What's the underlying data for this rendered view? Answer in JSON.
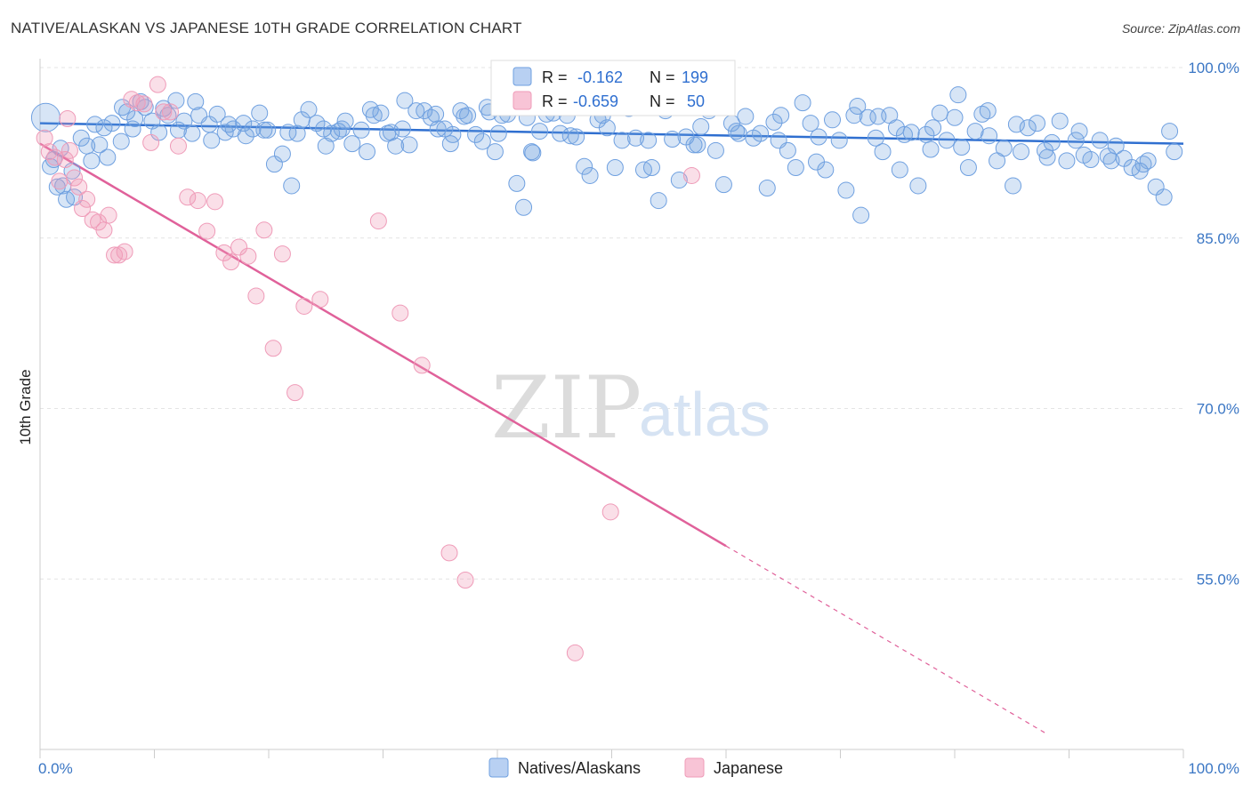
{
  "title": "NATIVE/ALASKAN VS JAPANESE 10TH GRADE CORRELATION CHART",
  "source": "Source: ZipAtlas.com",
  "watermark": {
    "zip": "ZIP",
    "atlas": "atlas"
  },
  "colors": {
    "blue": "#6fa0e0",
    "blue_line": "#2f6fd0",
    "pink": "#ef9bb8",
    "pink_line": "#e0619a",
    "tick": "#3a76c4"
  },
  "chart_data": {
    "type": "scatter",
    "title": "NATIVE/ALASKAN VS JAPANESE 10TH GRADE CORRELATION CHART",
    "ylabel": "10th Grade",
    "xlabel": "",
    "xlim": [
      0,
      100
    ],
    "ylim": [
      40,
      100
    ],
    "x_tick_labels": [
      "0.0%",
      "100.0%"
    ],
    "y_tick_values": [
      100,
      85,
      70,
      55
    ],
    "y_tick_labels": [
      "100.0%",
      "85.0%",
      "70.0%",
      "55.0%"
    ],
    "grid": true,
    "legend_position": "bottom",
    "stats": [
      {
        "r_label": "R =",
        "r": "-0.162",
        "n_label": "N =",
        "n": "199"
      },
      {
        "r_label": "R =",
        "r": "-0.659",
        "n_label": "N =",
        "n": "50"
      }
    ],
    "series": [
      {
        "name": "Natives/Alaskans",
        "color": "#6fa0e0",
        "trend": {
          "x": [
            0,
            100
          ],
          "y": [
            95.1,
            93.3
          ]
        },
        "points": [
          [
            0.5,
            95.6
          ],
          [
            1.2,
            91.9
          ],
          [
            1.5,
            89.5
          ],
          [
            2,
            89.6
          ],
          [
            2.3,
            88.4
          ],
          [
            2.8,
            90.9
          ],
          [
            3.6,
            93.8
          ],
          [
            4.1,
            93.1
          ],
          [
            4.5,
            91.8
          ],
          [
            5.2,
            93.2
          ],
          [
            5.6,
            94.7
          ],
          [
            6.3,
            95.1
          ],
          [
            7.1,
            93.5
          ],
          [
            7.6,
            96.1
          ],
          [
            8.3,
            95.5
          ],
          [
            8.8,
            97.0
          ],
          [
            9.2,
            96.5
          ],
          [
            9.8,
            95.3
          ],
          [
            10.4,
            94.3
          ],
          [
            11.2,
            95.8
          ],
          [
            11.9,
            97.1
          ],
          [
            12.6,
            95.3
          ],
          [
            13.3,
            94.2
          ],
          [
            13.9,
            95.8
          ],
          [
            14.8,
            95.0
          ],
          [
            15.5,
            95.9
          ],
          [
            16.2,
            94.3
          ],
          [
            16.9,
            94.6
          ],
          [
            17.8,
            95.1
          ],
          [
            18.6,
            94.6
          ],
          [
            19.2,
            96.0
          ],
          [
            19.9,
            94.5
          ],
          [
            20.5,
            91.5
          ],
          [
            21.2,
            92.4
          ],
          [
            22,
            89.6
          ],
          [
            22.5,
            94.2
          ],
          [
            23.5,
            96.3
          ],
          [
            24.2,
            95.1
          ],
          [
            24.8,
            94.6
          ],
          [
            25.5,
            94.2
          ],
          [
            26.1,
            94.4
          ],
          [
            26.7,
            95.3
          ],
          [
            27.3,
            93.3
          ],
          [
            28.1,
            94.5
          ],
          [
            28.6,
            92.6
          ],
          [
            29.2,
            95.8
          ],
          [
            29.8,
            96.0
          ],
          [
            30.4,
            94.2
          ],
          [
            31.1,
            93.1
          ],
          [
            31.7,
            94.6
          ],
          [
            32.3,
            93.2
          ],
          [
            32.9,
            96.2
          ],
          [
            33.6,
            96.2
          ],
          [
            34.2,
            95.6
          ],
          [
            34.8,
            94.6
          ],
          [
            35.4,
            94.6
          ],
          [
            36.1,
            94.1
          ],
          [
            36.8,
            96.2
          ],
          [
            37.4,
            95.8
          ],
          [
            38.1,
            94.1
          ],
          [
            38.7,
            93.5
          ],
          [
            39.3,
            96.1
          ],
          [
            39.8,
            92.6
          ],
          [
            40.4,
            95.8
          ],
          [
            40.9,
            95.9
          ],
          [
            41.7,
            89.8
          ],
          [
            42.3,
            87.7
          ],
          [
            43,
            92.6
          ],
          [
            43.7,
            94.4
          ],
          [
            44.3,
            95.9
          ],
          [
            44.9,
            96.0
          ],
          [
            45.5,
            94.2
          ],
          [
            46.1,
            95.8
          ],
          [
            46.9,
            93.9
          ],
          [
            47.6,
            91.3
          ],
          [
            48.1,
            90.5
          ],
          [
            48.8,
            95.4
          ],
          [
            49.6,
            94.7
          ],
          [
            50.3,
            91.2
          ],
          [
            50.9,
            93.6
          ],
          [
            51.5,
            96.4
          ],
          [
            52.1,
            93.8
          ],
          [
            52.8,
            91.0
          ],
          [
            53.5,
            91.2
          ],
          [
            54.1,
            88.3
          ],
          [
            54.7,
            96.2
          ],
          [
            55.3,
            93.7
          ],
          [
            55.9,
            90.1
          ],
          [
            56.5,
            93.9
          ],
          [
            57.2,
            93.2
          ],
          [
            57.8,
            94.8
          ],
          [
            58.5,
            96.2
          ],
          [
            59.1,
            92.7
          ],
          [
            59.8,
            89.7
          ],
          [
            60.5,
            95.1
          ],
          [
            61.1,
            94.2
          ],
          [
            61.7,
            95.7
          ],
          [
            62.4,
            93.8
          ],
          [
            63,
            94.2
          ],
          [
            63.6,
            89.4
          ],
          [
            64.2,
            95.2
          ],
          [
            64.8,
            95.8
          ],
          [
            65.4,
            92.7
          ],
          [
            66.1,
            91.2
          ],
          [
            66.7,
            96.9
          ],
          [
            67.4,
            95.1
          ],
          [
            68.1,
            93.9
          ],
          [
            68.7,
            91.0
          ],
          [
            69.3,
            95.4
          ],
          [
            69.9,
            93.6
          ],
          [
            70.5,
            89.2
          ],
          [
            71.2,
            95.8
          ],
          [
            71.8,
            87.0
          ],
          [
            72.4,
            95.6
          ],
          [
            73.1,
            93.8
          ],
          [
            73.7,
            92.6
          ],
          [
            74.3,
            95.8
          ],
          [
            74.9,
            94.7
          ],
          [
            75.6,
            94.1
          ],
          [
            76.2,
            94.3
          ],
          [
            76.8,
            89.6
          ],
          [
            77.5,
            94.1
          ],
          [
            78.1,
            94.7
          ],
          [
            78.7,
            96.0
          ],
          [
            79.3,
            93.6
          ],
          [
            80,
            95.6
          ],
          [
            80.6,
            93.0
          ],
          [
            81.2,
            91.2
          ],
          [
            81.8,
            94.4
          ],
          [
            82.4,
            95.9
          ],
          [
            83,
            94.0
          ],
          [
            83.7,
            91.8
          ],
          [
            84.3,
            92.9
          ],
          [
            85.1,
            89.6
          ],
          [
            85.8,
            92.6
          ],
          [
            86.4,
            94.7
          ],
          [
            87.2,
            95.1
          ],
          [
            87.9,
            92.7
          ],
          [
            88.5,
            93.4
          ],
          [
            89.2,
            95.3
          ],
          [
            89.8,
            91.8
          ],
          [
            90.6,
            93.6
          ],
          [
            91.3,
            92.3
          ],
          [
            91.9,
            91.9
          ],
          [
            92.7,
            93.6
          ],
          [
            93.4,
            92.2
          ],
          [
            94.1,
            93.1
          ],
          [
            94.8,
            92.0
          ],
          [
            95.5,
            91.2
          ],
          [
            96.2,
            90.9
          ],
          [
            96.9,
            91.8
          ],
          [
            97.6,
            89.5
          ],
          [
            98.3,
            88.6
          ],
          [
            99.2,
            92.6
          ],
          [
            1.8,
            92.9
          ],
          [
            3,
            88.6
          ],
          [
            5.9,
            92.1
          ],
          [
            8.1,
            94.6
          ],
          [
            12.1,
            94.5
          ],
          [
            15,
            93.6
          ],
          [
            18,
            94.0
          ],
          [
            21.7,
            94.3
          ],
          [
            25,
            93.1
          ],
          [
            30.7,
            94.3
          ],
          [
            35.9,
            93.3
          ],
          [
            39.1,
            96.5
          ],
          [
            42.6,
            95.6
          ],
          [
            46.4,
            94.0
          ],
          [
            49.2,
            95.8
          ],
          [
            53.2,
            93.6
          ],
          [
            57.5,
            93.2
          ],
          [
            60.9,
            94.4
          ],
          [
            64.6,
            93.6
          ],
          [
            67.9,
            91.7
          ],
          [
            71.5,
            96.6
          ],
          [
            73.3,
            95.7
          ],
          [
            75.2,
            91.0
          ],
          [
            77.9,
            92.8
          ],
          [
            80.3,
            97.6
          ],
          [
            82.9,
            96.2
          ],
          [
            85.4,
            95.0
          ],
          [
            88.1,
            92.1
          ],
          [
            90.9,
            94.4
          ],
          [
            93.7,
            91.8
          ],
          [
            96.5,
            91.5
          ],
          [
            98.8,
            94.4
          ],
          [
            0.9,
            91.3
          ],
          [
            4.8,
            95.0
          ],
          [
            7.2,
            96.5
          ],
          [
            10.8,
            96.4
          ],
          [
            13.6,
            97.0
          ],
          [
            16.5,
            95.0
          ],
          [
            19.6,
            94.5
          ],
          [
            22.9,
            95.4
          ],
          [
            26.4,
            94.6
          ],
          [
            28.9,
            96.3
          ],
          [
            31.9,
            97.1
          ],
          [
            34.6,
            95.9
          ],
          [
            37.1,
            95.7
          ],
          [
            40.1,
            94.2
          ],
          [
            43.1,
            92.5
          ],
          [
            45.8,
            96.8
          ]
        ]
      },
      {
        "name": "Japanese",
        "color": "#ef9bb8",
        "trend": {
          "x": [
            0,
            60
          ],
          "y": [
            93.3,
            57.9
          ],
          "dashed_to": {
            "x": 88,
            "y": 41.4
          }
        },
        "points": [
          [
            0.4,
            93.8
          ],
          [
            0.8,
            92.6
          ],
          [
            1.3,
            92.1
          ],
          [
            1.7,
            90.0
          ],
          [
            2.2,
            91.9
          ],
          [
            2.6,
            92.7
          ],
          [
            3,
            90.3
          ],
          [
            3.4,
            89.5
          ],
          [
            3.7,
            87.6
          ],
          [
            4.1,
            88.4
          ],
          [
            4.6,
            86.6
          ],
          [
            5.1,
            86.4
          ],
          [
            5.6,
            85.7
          ],
          [
            6,
            87.0
          ],
          [
            6.5,
            83.5
          ],
          [
            6.9,
            83.5
          ],
          [
            7.4,
            83.8
          ],
          [
            8,
            97.2
          ],
          [
            8.5,
            96.9
          ],
          [
            9.1,
            96.8
          ],
          [
            9.7,
            93.4
          ],
          [
            10.3,
            98.5
          ],
          [
            10.8,
            96.1
          ],
          [
            11.4,
            96.1
          ],
          [
            12.1,
            93.1
          ],
          [
            12.9,
            88.6
          ],
          [
            13.8,
            88.3
          ],
          [
            14.6,
            85.6
          ],
          [
            15.3,
            88.2
          ],
          [
            16.1,
            83.7
          ],
          [
            16.7,
            82.9
          ],
          [
            17.4,
            84.2
          ],
          [
            18.2,
            83.4
          ],
          [
            18.9,
            79.9
          ],
          [
            19.6,
            85.7
          ],
          [
            20.4,
            75.3
          ],
          [
            21.2,
            83.6
          ],
          [
            22.3,
            71.4
          ],
          [
            23.1,
            79.0
          ],
          [
            24.5,
            79.6
          ],
          [
            29.6,
            86.5
          ],
          [
            31.5,
            78.4
          ],
          [
            33.4,
            73.8
          ],
          [
            35.8,
            57.3
          ],
          [
            37.2,
            54.9
          ],
          [
            46.8,
            48.5
          ],
          [
            49.9,
            60.9
          ],
          [
            51.7,
            98.6
          ],
          [
            57,
            90.5
          ],
          [
            2.4,
            95.5
          ]
        ]
      }
    ]
  }
}
